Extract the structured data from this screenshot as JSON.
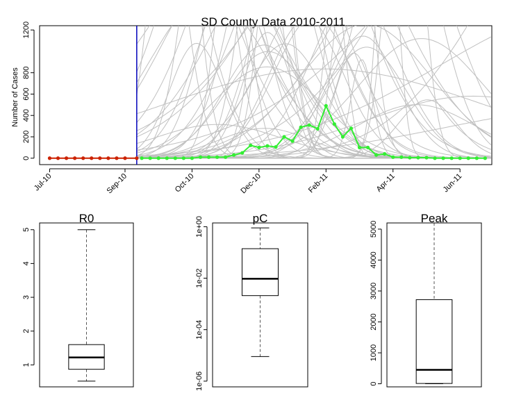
{
  "chart_data": [
    {
      "type": "line",
      "title": "SD County Data 2010-2011",
      "xlabel": "",
      "ylabel": "Number of Cases",
      "ylim": [
        -60,
        1240
      ],
      "y_ticks": [
        0,
        200,
        400,
        600,
        800,
        1200
      ],
      "x_ticks": [
        "Jul-10",
        "Sep-10",
        "Oct-10",
        "Dec-10",
        "Feb-11",
        "Apr-11",
        "Jun-11"
      ],
      "x_tick_weeks": [
        0,
        9,
        17,
        25,
        33,
        41,
        49
      ],
      "x_range_weeks": [
        -1.2,
        52.8
      ],
      "forecast_start_week": 10.4,
      "colors": {
        "observed_before": "#cc2200",
        "observed_after": "#33ee33",
        "forecast_line": "#0000bb",
        "simulations": "#c0c0c0"
      },
      "series": [
        {
          "values_before": [
            [
              0,
              0
            ],
            [
              1,
              0
            ],
            [
              2,
              0
            ],
            [
              3,
              0
            ],
            [
              4,
              0
            ],
            [
              5,
              0
            ],
            [
              6,
              0
            ],
            [
              7,
              0
            ],
            [
              8,
              0
            ],
            [
              9,
              0
            ],
            [
              10.4,
              0
            ]
          ],
          "values_after": [
            [
              11,
              0
            ],
            [
              12,
              0
            ],
            [
              13,
              0
            ],
            [
              14,
              0
            ],
            [
              15,
              0
            ],
            [
              16,
              0
            ],
            [
              17,
              0
            ],
            [
              18,
              10
            ],
            [
              19,
              10
            ],
            [
              20,
              10
            ],
            [
              21,
              10
            ],
            [
              22,
              30
            ],
            [
              23,
              50
            ],
            [
              24,
              120
            ],
            [
              25,
              100
            ],
            [
              26,
              115
            ],
            [
              27,
              105
            ],
            [
              28,
              200
            ],
            [
              29,
              160
            ],
            [
              30,
              290
            ],
            [
              31,
              310
            ],
            [
              32,
              275
            ],
            [
              33,
              490
            ],
            [
              34,
              320
            ],
            [
              35,
              200
            ],
            [
              36,
              280
            ],
            [
              37,
              100
            ],
            [
              38,
              100
            ],
            [
              39,
              30
            ],
            [
              40,
              40
            ],
            [
              41,
              10
            ],
            [
              42,
              10
            ],
            [
              43,
              5
            ],
            [
              44,
              5
            ],
            [
              45,
              5
            ],
            [
              46,
              0
            ],
            [
              47,
              0
            ],
            [
              48,
              0
            ],
            [
              49,
              0
            ],
            [
              50,
              0
            ],
            [
              51,
              0
            ],
            [
              52,
              0
            ]
          ]
        }
      ]
    },
    {
      "type": "box",
      "title": "R0",
      "scale": "linear",
      "ylim": [
        0.35,
        5.2
      ],
      "y_ticks": [
        1,
        2,
        3,
        4,
        5
      ],
      "y_tick_labels": [
        "1",
        "2",
        "3",
        "4",
        "5"
      ],
      "box": {
        "min": 0.52,
        "q1": 0.87,
        "median": 1.22,
        "q3": 1.6,
        "max": 5.0
      }
    },
    {
      "type": "box",
      "title": "pC",
      "scale": "log",
      "ylim": [
        6e-07,
        1.4
      ],
      "y_ticks": [
        1e-06,
        0.0001,
        0.01,
        1
      ],
      "y_tick_labels": [
        "1e-06",
        "1e-04",
        "1e-02",
        "1e+00"
      ],
      "box": {
        "min": 9e-06,
        "q1": 0.0021,
        "median": 0.0095,
        "q3": 0.14,
        "max": 0.9
      }
    },
    {
      "type": "box",
      "title": "Peak",
      "scale": "linear",
      "ylim": [
        -100,
        5200
      ],
      "y_ticks": [
        0,
        1000,
        2000,
        3000,
        4000,
        5000
      ],
      "y_tick_labels": [
        "0",
        "1000",
        "2000",
        "3000",
        "4000",
        "5000"
      ],
      "box": {
        "min": 0,
        "q1": 10,
        "median": 450,
        "q3": 2720,
        "max": 5200
      }
    }
  ]
}
